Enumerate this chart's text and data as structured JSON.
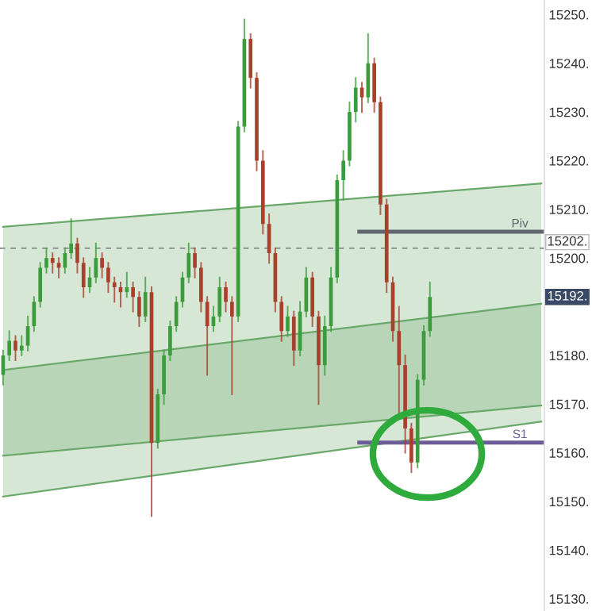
{
  "chart_data": {
    "type": "candlestick",
    "categories": [
      null,
      null,
      null,
      null,
      null,
      null,
      null,
      null,
      null,
      null,
      null,
      null,
      null,
      null,
      null,
      null,
      null,
      null,
      null,
      null,
      null,
      null,
      null,
      null,
      null,
      null,
      null,
      null,
      null,
      null,
      null,
      null,
      null,
      null,
      null,
      null,
      null,
      null,
      null,
      null,
      null,
      null,
      null,
      null,
      null,
      null,
      null,
      null,
      null,
      null,
      null,
      null,
      null,
      null,
      null,
      null,
      null,
      null,
      null,
      null,
      null,
      null,
      null,
      null,
      null,
      null,
      null,
      null,
      null,
      null,
      null,
      null,
      null,
      null,
      null,
      null,
      null,
      null,
      null,
      null,
      null,
      null,
      null,
      null,
      null,
      null,
      null,
      null
    ],
    "ohlc": [
      [
        15176,
        15181,
        15174,
        15180
      ],
      [
        15180,
        15185,
        15179,
        15183
      ],
      [
        15183,
        15184,
        15179,
        15181
      ],
      [
        15181,
        15184,
        15180,
        15182
      ],
      [
        15182,
        15188,
        15181,
        15186
      ],
      [
        15186,
        15192,
        15185,
        15191
      ],
      [
        15191,
        15199,
        15190,
        15198
      ],
      [
        15198,
        15202,
        15197,
        15200
      ],
      [
        15200,
        15201,
        15197,
        15199
      ],
      [
        15199,
        15200,
        15196,
        15198
      ],
      [
        15198,
        15202,
        15197,
        15201
      ],
      [
        15201,
        15208,
        15200,
        15203
      ],
      [
        15203,
        15204,
        15197,
        15199
      ],
      [
        15199,
        15200,
        15192,
        15194
      ],
      [
        15194,
        15198,
        15193,
        15196
      ],
      [
        15196,
        15203,
        15195,
        15200
      ],
      [
        15200,
        15201,
        15196,
        15198
      ],
      [
        15198,
        15199,
        15193,
        15195
      ],
      [
        15195,
        15196,
        15191,
        15194
      ],
      [
        15194,
        15195,
        15190,
        15193
      ],
      [
        15193,
        15197,
        15192,
        15194
      ],
      [
        15194,
        15195,
        15189,
        15192
      ],
      [
        15192,
        15193,
        15186,
        15188
      ],
      [
        15188,
        15196,
        15187,
        15193
      ],
      [
        15193,
        15194,
        15147,
        15162
      ],
      [
        15162,
        15173,
        15161,
        15172
      ],
      [
        15172,
        15181,
        15170,
        15180
      ],
      [
        15180,
        15187,
        15179,
        15186
      ],
      [
        15186,
        15192,
        15185,
        15191
      ],
      [
        15191,
        15197,
        15190,
        15196
      ],
      [
        15196,
        15203,
        15195,
        15201
      ],
      [
        15201,
        15202,
        15196,
        15198
      ],
      [
        15198,
        15199,
        15189,
        15191
      ],
      [
        15191,
        15192,
        15176,
        15186
      ],
      [
        15186,
        15190,
        15185,
        15188
      ],
      [
        15188,
        15196,
        15187,
        15194
      ],
      [
        15194,
        15195,
        15189,
        15191
      ],
      [
        15191,
        15192,
        15172,
        15188
      ],
      [
        15188,
        15228,
        15187,
        15227
      ],
      [
        15227,
        15249,
        15226,
        15245
      ],
      [
        15245,
        15246,
        15235,
        15237
      ],
      [
        15237,
        15238,
        15218,
        15220
      ],
      [
        15220,
        15222,
        15205,
        15207
      ],
      [
        15207,
        15209,
        15199,
        15201
      ],
      [
        15201,
        15202,
        15189,
        15191
      ],
      [
        15191,
        15192,
        15183,
        15185
      ],
      [
        15185,
        15190,
        15184,
        15188
      ],
      [
        15188,
        15189,
        15178,
        15181
      ],
      [
        15181,
        15191,
        15180,
        15189
      ],
      [
        15189,
        15198,
        15188,
        15196
      ],
      [
        15196,
        15197,
        15186,
        15188
      ],
      [
        15188,
        15189,
        15170,
        15178
      ],
      [
        15178,
        15188,
        15176,
        15186
      ],
      [
        15186,
        15198,
        15185,
        15196
      ],
      [
        15196,
        15217,
        15195,
        15216
      ],
      [
        15216,
        15222,
        15212,
        15220
      ],
      [
        15220,
        15232,
        15219,
        15230
      ],
      [
        15230,
        15237,
        15228,
        15235
      ],
      [
        15235,
        15236,
        15230,
        15233
      ],
      [
        15233,
        15246,
        15232,
        15240
      ],
      [
        15240,
        15241,
        15230,
        15232
      ],
      [
        15232,
        15233,
        15209,
        15211
      ],
      [
        15211,
        15212,
        15193,
        15195
      ],
      [
        15195,
        15196,
        15183,
        15185
      ],
      [
        15185,
        15190,
        15168,
        15178
      ],
      [
        15178,
        15180,
        15160,
        15165
      ],
      [
        15165,
        15166,
        15156,
        15158
      ],
      [
        15158,
        15176,
        15157,
        15175
      ],
      [
        15175,
        15186,
        15174,
        15185
      ],
      [
        15185,
        15195,
        15184,
        15192
      ],
      null,
      null,
      null,
      null,
      null,
      null,
      null,
      null,
      null,
      null,
      null,
      null,
      null,
      null,
      null,
      null,
      null,
      null
    ],
    "series": [
      {
        "type": "line",
        "color": "#6aa86a",
        "values": [
          15151,
          null,
          null,
          null,
          null,
          null,
          null,
          null,
          null,
          null,
          null,
          null,
          null,
          null,
          null,
          null,
          null,
          null,
          null,
          null,
          null,
          null,
          null,
          null,
          null,
          null,
          null,
          null,
          null,
          null,
          null,
          null,
          null,
          null,
          null,
          null,
          null,
          null,
          null,
          null,
          null,
          null,
          null,
          null,
          null,
          null,
          null,
          null,
          null,
          null,
          null,
          null,
          null,
          null,
          null,
          null,
          null,
          null,
          null,
          null,
          null,
          null,
          null,
          null,
          null,
          null,
          null,
          null,
          null,
          null,
          null,
          null,
          null,
          null,
          null,
          null,
          null,
          null,
          null,
          null,
          null,
          null,
          null,
          null,
          null,
          null,
          null,
          15166.4
        ]
      },
      {
        "type": "line",
        "color": "#6aa86a",
        "values": [
          15159.4,
          null,
          null,
          null,
          null,
          null,
          null,
          null,
          null,
          null,
          null,
          null,
          null,
          null,
          null,
          null,
          null,
          null,
          null,
          null,
          null,
          null,
          null,
          null,
          null,
          null,
          null,
          null,
          null,
          null,
          null,
          null,
          null,
          null,
          null,
          null,
          null,
          null,
          null,
          null,
          null,
          null,
          null,
          null,
          null,
          null,
          null,
          null,
          null,
          null,
          null,
          null,
          null,
          null,
          null,
          null,
          null,
          null,
          null,
          null,
          null,
          null,
          null,
          null,
          null,
          null,
          null,
          null,
          null,
          null,
          null,
          null,
          null,
          null,
          null,
          null,
          null,
          null,
          null,
          null,
          null,
          null,
          null,
          null,
          null,
          null,
          null,
          15169.7
        ]
      },
      {
        "type": "line",
        "color": "#6aa86a",
        "values": [
          15206.4,
          null,
          null,
          null,
          null,
          null,
          null,
          null,
          null,
          null,
          null,
          null,
          null,
          null,
          null,
          null,
          null,
          null,
          null,
          null,
          null,
          null,
          null,
          null,
          null,
          null,
          null,
          null,
          null,
          null,
          null,
          null,
          null,
          null,
          null,
          null,
          null,
          null,
          null,
          null,
          null,
          null,
          null,
          null,
          null,
          null,
          null,
          null,
          null,
          null,
          null,
          null,
          null,
          null,
          null,
          null,
          null,
          null,
          null,
          null,
          null,
          null,
          null,
          null,
          null,
          null,
          null,
          null,
          null,
          null,
          null,
          null,
          null,
          null,
          null,
          null,
          null,
          null,
          null,
          null,
          null,
          null,
          null,
          null,
          null,
          null,
          null,
          15215.3
        ]
      },
      {
        "type": "line",
        "color": "#6aa86a",
        "values": [
          15177,
          null,
          null,
          null,
          null,
          null,
          null,
          null,
          null,
          null,
          null,
          null,
          null,
          null,
          null,
          null,
          null,
          null,
          null,
          null,
          null,
          null,
          null,
          null,
          null,
          null,
          null,
          null,
          null,
          null,
          null,
          null,
          null,
          null,
          null,
          null,
          null,
          null,
          null,
          null,
          null,
          null,
          null,
          null,
          null,
          null,
          null,
          null,
          null,
          null,
          null,
          null,
          null,
          null,
          null,
          null,
          null,
          null,
          null,
          null,
          null,
          null,
          null,
          null,
          null,
          null,
          null,
          null,
          null,
          null,
          null,
          null,
          null,
          null,
          null,
          null,
          null,
          null,
          null,
          null,
          null,
          null,
          null,
          null,
          null,
          null,
          null,
          15190.6
        ]
      }
    ],
    "ylim": [
      15127.5,
      15253
    ],
    "yticks": [
      {
        "value": 15130,
        "label": "15130."
      },
      {
        "value": 15140,
        "label": "15140."
      },
      {
        "value": 15150,
        "label": "15150."
      },
      {
        "value": 15160,
        "label": "15160."
      },
      {
        "value": 15170,
        "label": "15170."
      },
      {
        "value": 15180,
        "label": "15180."
      },
      {
        "value": 15200,
        "label": "15200."
      },
      {
        "value": 15210,
        "label": "15210."
      },
      {
        "value": 15220,
        "label": "15220."
      },
      {
        "value": 15230,
        "label": "15230."
      },
      {
        "value": 15240,
        "label": "15240."
      },
      {
        "value": 15250,
        "label": "15250."
      }
    ],
    "ref_lines": [
      {
        "axis": "y",
        "value": 15202,
        "label": "15202.",
        "color": "#9aa09a",
        "line_style": "dashed"
      },
      {
        "axis": "y",
        "value": 15205.4,
        "label": "Piv",
        "color": "#5f6670",
        "line_style": "solid"
      },
      {
        "axis": "y",
        "value": 15162.1,
        "label": "S1",
        "color": "#6b5c98",
        "line_style": "solid"
      }
    ],
    "annotations": [
      {
        "text": "15192.",
        "y": 15192
      }
    ],
    "tick_labels": "y",
    "grid": false,
    "legend": false
  }
}
